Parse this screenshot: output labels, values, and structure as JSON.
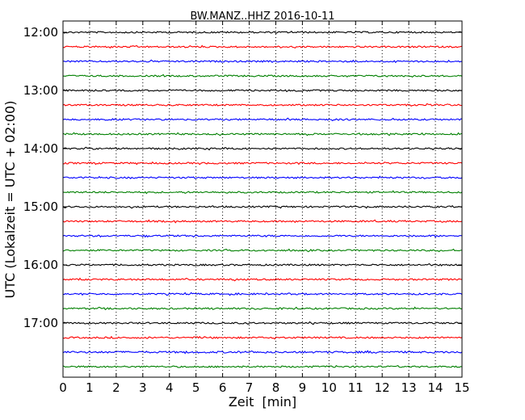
{
  "chart_data": {
    "type": "line",
    "title": "BW.MANZ..HHZ 2016-10-11",
    "xlabel": "Zeit  [min]",
    "ylabel": "UTC (Lokalzeit = UTC + 02:00)",
    "xlim": [
      0,
      15
    ],
    "x_ticks": [
      "0",
      "1",
      "2",
      "3",
      "4",
      "5",
      "6",
      "7",
      "8",
      "9",
      "10",
      "11",
      "12",
      "13",
      "14",
      "15"
    ],
    "y_ticks": [
      "12:00",
      "13:00",
      "14:00",
      "15:00",
      "16:00",
      "17:00"
    ],
    "grid": "vertical-dotted",
    "traces_per_hour": 4,
    "series_colors": [
      "#000000",
      "#ff0000",
      "#0000ff",
      "#008000"
    ],
    "series": [
      {
        "start": "12:00",
        "amplitude": 0.6
      },
      {
        "start": "12:15",
        "amplitude": 0.6
      },
      {
        "start": "12:30",
        "amplitude": 0.6
      },
      {
        "start": "12:45",
        "amplitude": 0.6
      },
      {
        "start": "13:00",
        "amplitude": 0.6
      },
      {
        "start": "13:15",
        "amplitude": 0.6
      },
      {
        "start": "13:30",
        "amplitude": 0.6
      },
      {
        "start": "13:45",
        "amplitude": 0.6
      },
      {
        "start": "14:00",
        "amplitude": 0.6
      },
      {
        "start": "14:15",
        "amplitude": 0.6
      },
      {
        "start": "14:30",
        "amplitude": 0.6
      },
      {
        "start": "14:45",
        "amplitude": 0.6
      },
      {
        "start": "15:00",
        "amplitude": 0.6
      },
      {
        "start": "15:15",
        "amplitude": 0.6
      },
      {
        "start": "15:30",
        "amplitude": 0.6
      },
      {
        "start": "15:45",
        "amplitude": 0.6
      },
      {
        "start": "16:00",
        "amplitude": 0.6
      },
      {
        "start": "16:15",
        "amplitude": 0.6
      },
      {
        "start": "16:30",
        "amplitude": 0.6
      },
      {
        "start": "16:45",
        "amplitude": 0.6
      },
      {
        "start": "17:00",
        "amplitude": 0.6
      },
      {
        "start": "17:15",
        "amplitude": 0.6
      },
      {
        "start": "17:30",
        "amplitude": 0.7
      },
      {
        "start": "17:45",
        "amplitude": 0.6
      }
    ]
  }
}
